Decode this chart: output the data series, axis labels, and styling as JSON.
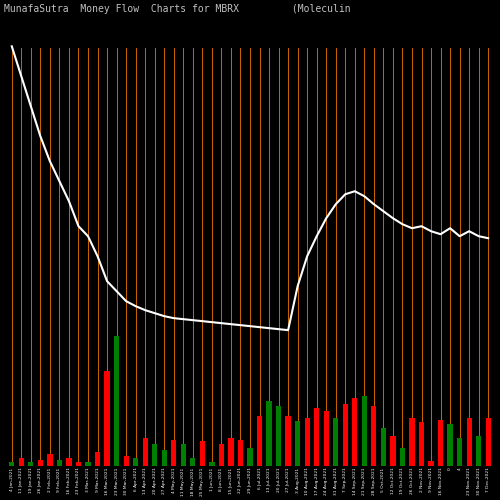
{
  "title": "MunafaSutra  Money Flow  Charts for MBRX         (Moleculin                           Biot",
  "background_color": "#000000",
  "bar_colors": [
    "green",
    "red",
    "green",
    "red",
    "red",
    "green",
    "red",
    "red",
    "green",
    "red",
    "red",
    "green",
    "red",
    "green",
    "red",
    "green",
    "green",
    "red",
    "green",
    "green",
    "red",
    "green",
    "red",
    "red",
    "red",
    "green",
    "red",
    "green",
    "green",
    "red",
    "green",
    "red",
    "red",
    "red",
    "green",
    "red",
    "red",
    "green",
    "red",
    "green",
    "red",
    "green",
    "red",
    "red",
    "red",
    "red",
    "green",
    "green",
    "red",
    "green",
    "red"
  ],
  "bar_heights": [
    4,
    8,
    4,
    6,
    12,
    6,
    8,
    4,
    4,
    14,
    95,
    130,
    10,
    8,
    28,
    22,
    16,
    26,
    22,
    8,
    25,
    4,
    22,
    28,
    26,
    18,
    50,
    65,
    60,
    50,
    45,
    48,
    58,
    55,
    48,
    62,
    68,
    70,
    60,
    38,
    30,
    18,
    48,
    44,
    5,
    46,
    42,
    28,
    48,
    30,
    48
  ],
  "line_y": [
    420,
    390,
    360,
    330,
    305,
    285,
    265,
    240,
    230,
    210,
    185,
    175,
    165,
    160,
    156,
    153,
    150,
    148,
    147,
    146,
    145,
    144,
    143,
    142,
    141,
    140,
    139,
    138,
    137,
    136,
    180,
    210,
    230,
    248,
    262,
    272,
    275,
    270,
    262,
    255,
    248,
    242,
    238,
    240,
    235,
    232,
    238,
    230,
    235,
    230,
    228
  ],
  "line_color": "#ffffff",
  "orange_line_color": "#cc6600",
  "title_color": "#c0c0c0",
  "title_fontsize": 7,
  "ylim_max": 450,
  "labels": [
    "4 Jan,2021",
    "11 Jan,2021",
    "19 Jan,2021",
    "26 Jan,2021",
    "2 Feb,2021",
    "9 Feb,2021",
    "16 Feb,2021",
    "23 Feb,2021",
    "3 Mar,2021",
    "9 Mar,2021",
    "16 Mar,2021",
    "23 Mar,2021",
    "30 Mar,2021",
    "6 Apr,2021",
    "13 Apr,2021",
    "20 Apr,2021",
    "27 Apr,2021",
    "4 May,2021",
    "11 May,2021",
    "18 May,2021",
    "25 May,2021",
    "1 Jun,2021",
    "8 Jun,2021",
    "15 Jun,2021",
    "22 Jun,2021",
    "29 Jun,2021",
    "6 Jul,2021",
    "13 Jul,2021",
    "20 Jul,2021",
    "27 Jul,2021",
    "3 Aug,2021",
    "10 Aug,2021",
    "17 Aug,2021",
    "24 Aug,2021",
    "31 Aug,2021",
    "7 Sep,2021",
    "14 Sep,2021",
    "21 Sep,2021",
    "28 Sep,2021",
    "5 Oct,2021",
    "12 Oct,2021",
    "19 Oct,2021",
    "26 Oct,2021",
    "2 Nov,2021",
    "9 Nov,2021",
    "16 Nov,2021",
    "0",
    "4",
    "23 Nov,2021",
    "30 Nov,2021",
    "7 Dec,2021"
  ]
}
